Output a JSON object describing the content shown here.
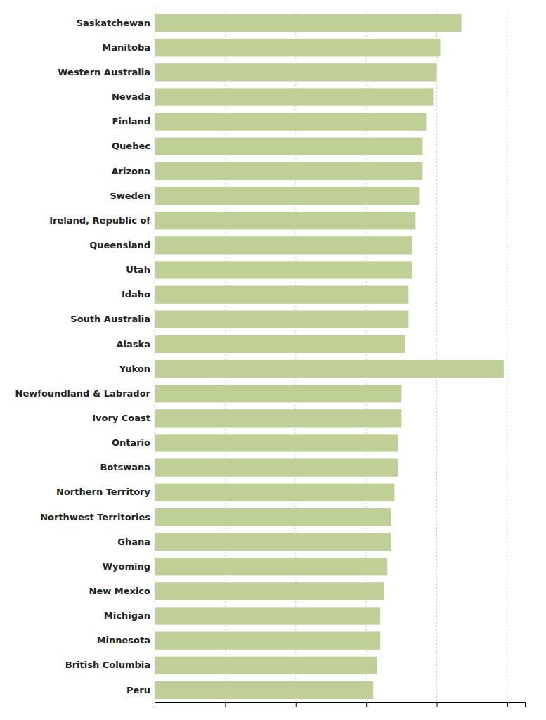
{
  "chart_data": {
    "type": "bar",
    "orientation": "horizontal",
    "categories": [
      "Saskatchewan",
      "Manitoba",
      "Western Australia",
      "Nevada",
      "Finland",
      "Quebec",
      "Arizona",
      "Sweden",
      "Ireland, Republic of",
      "Queensland",
      "Utah",
      "Idaho",
      "South Australia",
      "Alaska",
      "Yukon",
      "Newfoundland & Labrador",
      "Ivory Coast",
      "Ontario",
      "Botswana",
      "Northern Territory",
      "Northwest Territories",
      "Ghana",
      "Wyoming",
      "New Mexico",
      "Michigan",
      "Minnesota",
      "British Columbia",
      "Peru"
    ],
    "values": [
      87,
      81,
      80,
      79,
      77,
      76,
      76,
      75,
      74,
      73,
      73,
      72,
      72,
      71,
      99,
      70,
      70,
      69,
      69,
      68,
      67,
      67,
      66,
      65,
      64,
      64,
      63,
      62
    ],
    "color": "#bfcf96",
    "xlim": [
      0,
      105
    ],
    "xticks": [
      0,
      20,
      40,
      60,
      80,
      100
    ],
    "grid": true,
    "tick_labels": "y"
  }
}
